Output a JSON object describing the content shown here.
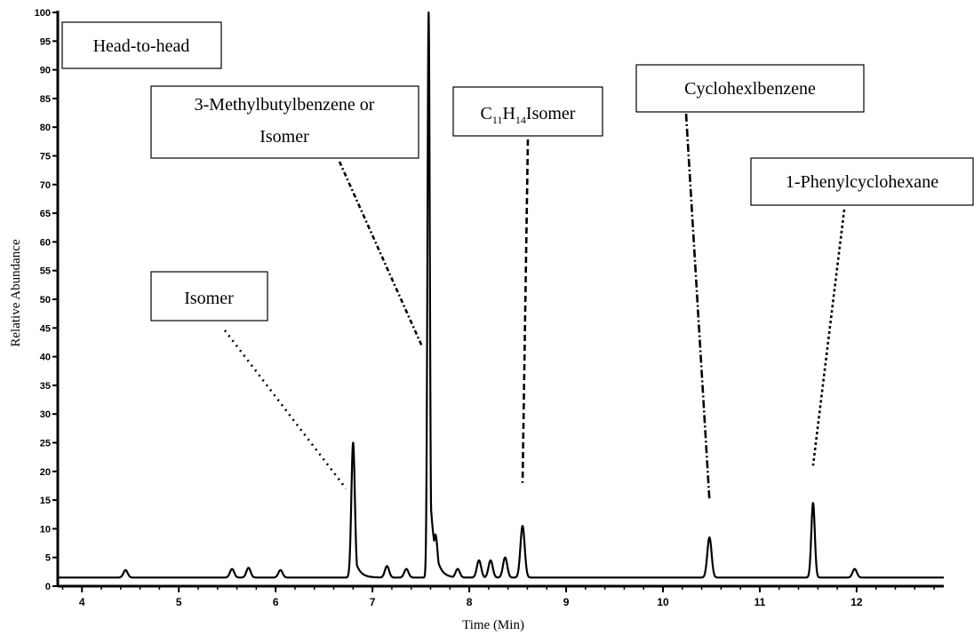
{
  "chart_data": {
    "type": "line",
    "title": "",
    "xlabel": "Time (Min)",
    "ylabel": "Relative Abundance",
    "xlim": [
      3.75,
      12.9
    ],
    "ylim": [
      0,
      100
    ],
    "grid": false,
    "x_ticks": [
      "4",
      "5",
      "6",
      "7",
      "8",
      "9",
      "10",
      "11",
      "12"
    ],
    "y_ticks": [
      "0",
      "5",
      "10",
      "15",
      "20",
      "25",
      "30",
      "35",
      "40",
      "45",
      "50",
      "55",
      "60",
      "65",
      "70",
      "75",
      "80",
      "85",
      "90",
      "95",
      "100"
    ],
    "baseline": 1.5,
    "series": [
      {
        "peaks": [
          {
            "time": 4.45,
            "height": 2.8
          },
          {
            "time": 5.55,
            "height": 3.0
          },
          {
            "time": 5.72,
            "height": 3.2
          },
          {
            "time": 6.05,
            "height": 2.8
          },
          {
            "time": 6.8,
            "height": 25.0
          },
          {
            "time": 7.15,
            "height": 3.5
          },
          {
            "time": 7.35,
            "height": 3.0
          },
          {
            "time": 7.58,
            "height": 100.0
          },
          {
            "time": 7.65,
            "height": 9.0
          },
          {
            "time": 7.88,
            "height": 3.0
          },
          {
            "time": 8.1,
            "height": 4.5
          },
          {
            "time": 8.22,
            "height": 4.5
          },
          {
            "time": 8.37,
            "height": 5.0
          },
          {
            "time": 8.55,
            "height": 10.5
          },
          {
            "time": 10.48,
            "height": 8.5
          },
          {
            "time": 11.55,
            "height": 14.5
          },
          {
            "time": 11.98,
            "height": 3.0
          }
        ]
      }
    ],
    "annotations": [
      {
        "text": "Head-to-head",
        "kind": "label"
      },
      {
        "text": "Isomer",
        "points_to": 6.8
      },
      {
        "lines": [
          "3-Methylbutylbenzene or",
          "Isomer"
        ],
        "points_to": 7.58
      },
      {
        "formula": {
          "c": "C",
          "c_sub": "11",
          "h": "H",
          "h_sub": "14",
          "rest": "Isomer"
        },
        "points_to": 8.55
      },
      {
        "text": "Cyclohexlbenzene",
        "points_to": 10.48
      },
      {
        "text": "1-Phenylcyclohexane",
        "points_to": 11.55
      }
    ]
  }
}
